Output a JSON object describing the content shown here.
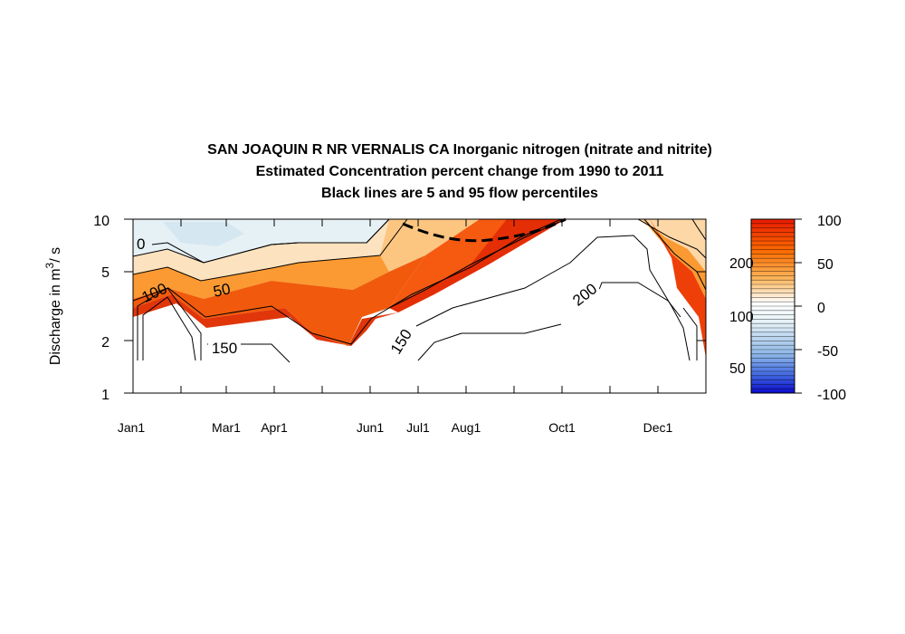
{
  "chart_data": {
    "type": "contour",
    "title": "SAN JOAQUIN R NR VERNALIS CA  Inorganic nitrogen (nitrate and nitrite)",
    "subtitle_1": "Estimated Concentration percent change from 1990 to 2011",
    "subtitle_2": "Black lines are 5 and 95 flow percentiles",
    "ylabel_main": "Discharge in m",
    "ylabel_sup": "3",
    "ylabel_tail": "/ s",
    "y_scale": "log",
    "ylim": [
      1,
      10
    ],
    "y_ticks": [
      {
        "label": "1",
        "value": 1
      },
      {
        "label": "2",
        "value": 2
      },
      {
        "label": "5",
        "value": 5
      },
      {
        "label": "10",
        "value": 10
      }
    ],
    "x_ticks": [
      "Jan1",
      "Mar1",
      "Apr1",
      "Jun1",
      "Jul1",
      "Aug1",
      "Oct1",
      "Dec1"
    ],
    "contour_labels": [
      "0",
      "50",
      "100",
      "150",
      "150",
      "200"
    ],
    "colorbar": {
      "range": [
        -100,
        100
      ],
      "tick_labels": [
        "100",
        "50",
        "0",
        "-50",
        "-100"
      ],
      "colors": {
        "low": "#0000cc",
        "mid": "#ffffff",
        "high": "#e01000"
      }
    },
    "colorbar_inner_labels": [
      "200",
      "100",
      "50"
    ],
    "grid": false,
    "legend": "colorbar-right"
  }
}
